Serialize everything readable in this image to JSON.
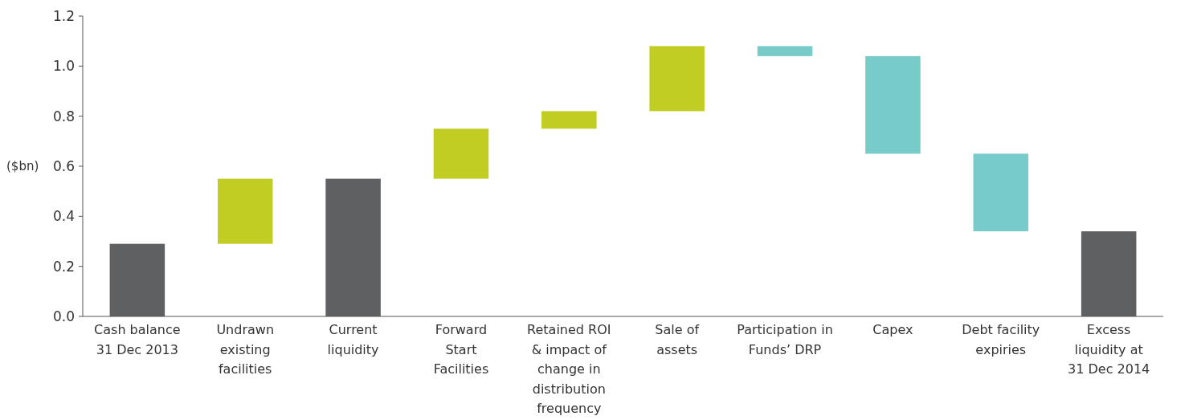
{
  "chart_data": {
    "type": "bar",
    "ylabel": "($bn)",
    "categories": [
      "Cash balance\n31 Dec 2013",
      "Undrawn\nexisting\nfacilities",
      "Current\nliquidity",
      "Forward\nStart\nFacilities",
      "Retained ROI\n& impact of\nchange in\ndistribution\nfrequency",
      "Sale of\nassets",
      "Participation in\nFunds’ DRP",
      "Capex",
      "Debt facility\nexpiries",
      "Excess\nliquidity at\n31 Dec 2014"
    ],
    "values": [
      0.29,
      0.26,
      0.55,
      0.2,
      0.07,
      0.26,
      -0.04,
      -0.39,
      -0.31,
      0.34
    ],
    "base": [
      0,
      0.29,
      0,
      0.55,
      0.75,
      0.82,
      1.08,
      1.04,
      0.65,
      0
    ],
    "colors": [
      "#5f6062",
      "#c2cd23",
      "#5f6062",
      "#c2cd23",
      "#c2cd23",
      "#c2cd23",
      "#77cbc8",
      "#77cbc8",
      "#77cbc8",
      "#5f6062"
    ],
    "ylim": [
      0,
      1.2
    ],
    "yticks": [
      {
        "value": 0,
        "label": "0.0"
      },
      {
        "value": 0.2,
        "label": "0.2"
      },
      {
        "value": 0.4,
        "label": "0.4"
      },
      {
        "value": 0.6,
        "label": "0.6"
      },
      {
        "value": 0.8,
        "label": "0.8"
      },
      {
        "value": 1,
        "label": "1.0"
      },
      {
        "value": 1.2,
        "label": "1.2"
      }
    ],
    "grid": false
  }
}
